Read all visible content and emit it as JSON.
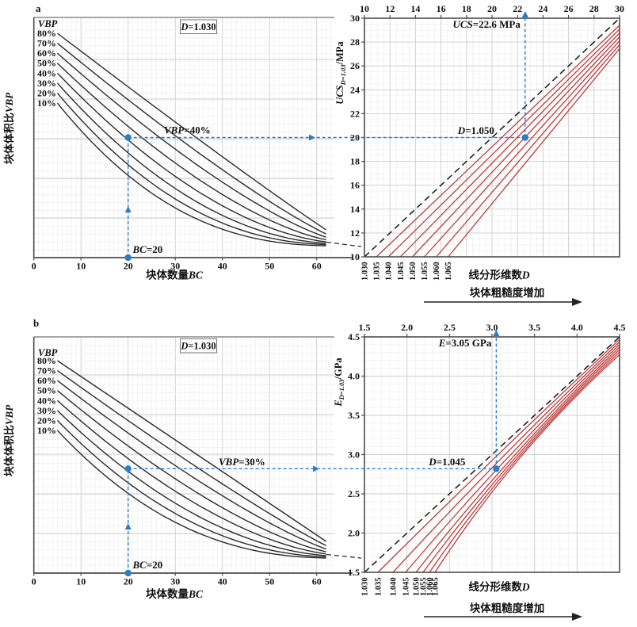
{
  "colors": {
    "blue": "#2a7ec7",
    "red": "#bf3a3a",
    "curve_black": "#2b2b2b",
    "axis": "#4d4d4d",
    "grid_minor": "#ececec",
    "grid_major": "#cccccc",
    "text": "#111111"
  },
  "panels": [
    {
      "label": "a",
      "charts": [
        "a-left",
        "a-right"
      ]
    },
    {
      "label": "b",
      "charts": [
        "b-left",
        "b-right"
      ]
    }
  ],
  "chart_data": [
    {
      "id": "a-left",
      "panel": "a",
      "type": "line",
      "xlabel": "块体数量BC",
      "ylabel": "块体体积比VBP",
      "x_ticks": [
        "0",
        "10",
        "20",
        "30",
        "40",
        "50",
        "60"
      ],
      "x_range": [
        0,
        65
      ],
      "legend_title": "VBP",
      "series_labels": [
        "80%",
        "70%",
        "60%",
        "50%",
        "40%",
        "30%",
        "20%",
        "10%"
      ],
      "series_values": [
        80,
        70,
        60,
        50,
        40,
        30,
        20,
        10
      ],
      "series_description": "VBP curves decay with increasing block count BC and converge near BC=65 (dashed tail)",
      "condition_label": "D=1.030",
      "annotations": {
        "horizontal": "VBP=40%",
        "vertical": "BC=20"
      },
      "readings": {
        "bc": 20,
        "vbp": "40%"
      },
      "grid": true
    },
    {
      "id": "a-right",
      "panel": "a",
      "type": "line",
      "xlabel": "线分形维数D",
      "ylabel_parts": {
        "main": "UCS",
        "sub": "D=1.03",
        "unit": "/MPa"
      },
      "axis_range": [
        10,
        30
      ],
      "top_ticks": [
        "10",
        "12",
        "14",
        "16",
        "18",
        "20",
        "22",
        "24",
        "26",
        "28",
        "30"
      ],
      "y_ticks": [
        "30",
        "28",
        "26",
        "24",
        "22",
        "20",
        "18",
        "16",
        "14",
        "12",
        "10"
      ],
      "d_values": [
        "1.030",
        "1.035",
        "1.040",
        "1.045",
        "1.050",
        "1.055",
        "1.060",
        "1.065"
      ],
      "reference_d": "1.030",
      "selected_d_index": 4,
      "annotations": {
        "result": "UCS=22.6 MPa",
        "selected": "D=1.050"
      },
      "readings": {
        "base": 20,
        "result": 22.6
      },
      "arrow_label": "块体粗糙度增加",
      "grid": true
    },
    {
      "id": "b-left",
      "panel": "b",
      "type": "line",
      "xlabel": "块体数量BC",
      "ylabel": "块体体积比VBP",
      "x_ticks": [
        "0",
        "10",
        "20",
        "30",
        "40",
        "50",
        "60"
      ],
      "x_range": [
        0,
        65
      ],
      "legend_title": "VBP",
      "series_labels": [
        "80%",
        "70%",
        "60%",
        "50%",
        "40%",
        "30%",
        "20%",
        "10%"
      ],
      "series_values": [
        80,
        70,
        60,
        50,
        40,
        30,
        20,
        10
      ],
      "series_description": "VBP curves decay with increasing block count BC and converge near BC=65 (dashed tail)",
      "condition_label": "D=1.030",
      "annotations": {
        "horizontal": "VBP=30%",
        "vertical": "BC=20"
      },
      "readings": {
        "bc": 20,
        "vbp": "30%"
      },
      "grid": true
    },
    {
      "id": "b-right",
      "panel": "b",
      "type": "line",
      "xlabel": "线分形维数D",
      "ylabel_parts": {
        "main": "E",
        "sub": "D=1.03",
        "unit": "/GPa"
      },
      "axis_range": [
        1.5,
        4.5
      ],
      "top_ticks": [
        "1.5",
        "2.0",
        "2.5",
        "3.0",
        "3.5",
        "4.0",
        "4.5"
      ],
      "y_ticks": [
        "4.5",
        "4.0",
        "3.5",
        "3.0",
        "2.5",
        "2.0",
        "1.5"
      ],
      "d_values": [
        "1.030",
        "1.035",
        "1.040",
        "1.045",
        "1.050",
        "1.055",
        "1.060",
        "1.065"
      ],
      "reference_d": "1.030",
      "selected_d_index": 3,
      "annotations": {
        "result": "E=3.05 GPa",
        "selected": "D=1.045"
      },
      "readings": {
        "base": 2.82,
        "result": 3.05
      },
      "arrow_label": "块体粗糙度增加",
      "grid": true
    }
  ]
}
